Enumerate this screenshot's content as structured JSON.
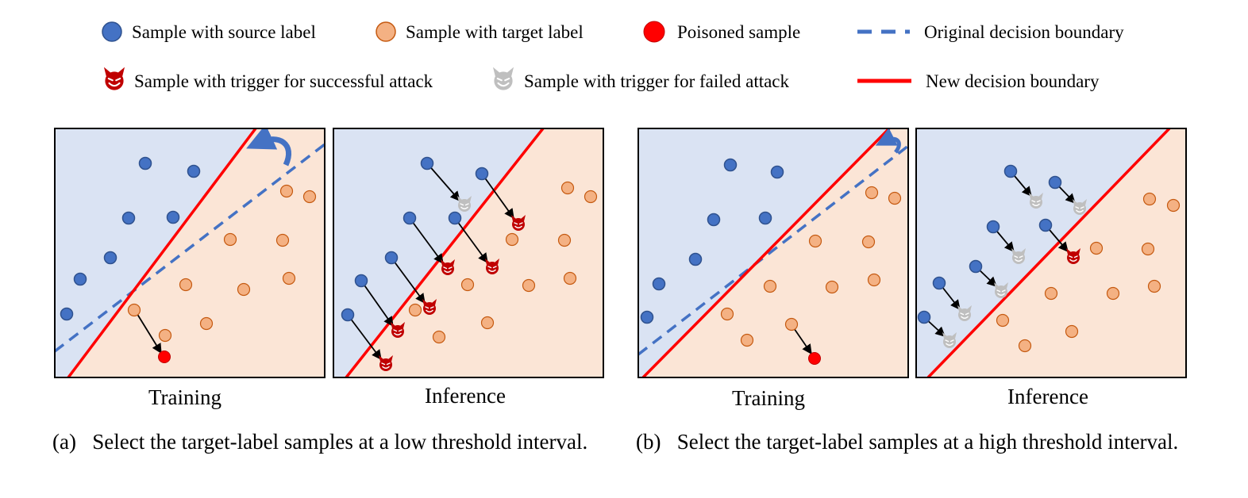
{
  "legend": {
    "source": "Sample with source label",
    "target": "Sample with target label",
    "poisoned": "Poisoned sample",
    "original_boundary": "Original decision boundary",
    "trigger_success": "Sample with trigger for successful attack",
    "trigger_failed": "Sample with trigger for failed attack",
    "new_boundary": "New decision boundary"
  },
  "colors": {
    "source_fill": "#4472C4",
    "source_stroke": "#2F528F",
    "target_fill": "#F4B183",
    "target_stroke": "#C55A11",
    "poisoned": "#FF0000",
    "success_devil": "#C00000",
    "failed_devil": "#BFBFBF",
    "blue_region": "#DAE3F3",
    "orange_region": "#FBE5D6",
    "original_boundary": "#4472C4",
    "new_boundary": "#FF0000",
    "rotate_arrow": "#4472C4"
  },
  "panels": {
    "a_training": "Training",
    "a_inference": "Inference",
    "b_training": "Training",
    "b_inference": "Inference"
  },
  "captions": {
    "a_tag": "(a)",
    "a_text": "Select the target-label samples at a low threshold interval.",
    "b_tag": "(b)",
    "b_text": "Select the target-label samples at a high threshold interval."
  }
}
